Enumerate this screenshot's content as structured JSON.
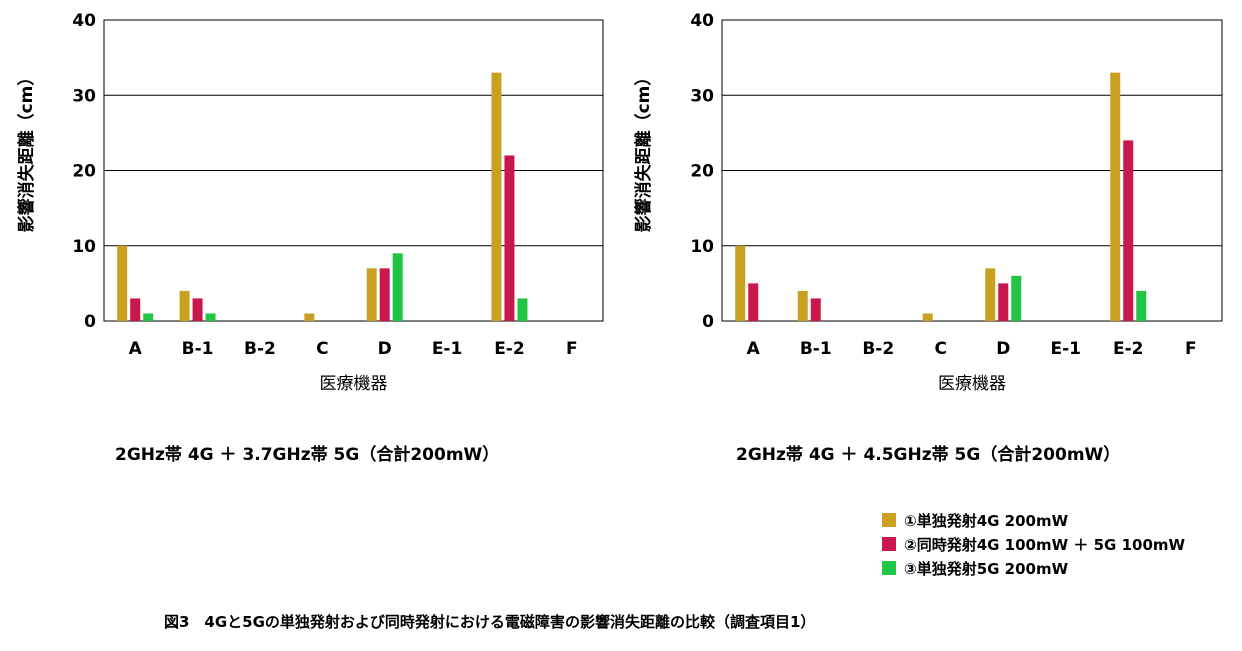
{
  "chart_data": [
    {
      "type": "bar",
      "title": "2GHz帯 4G ＋ 3.7GHz帯 5G（合計200mW）",
      "xlabel": "医療機器",
      "ylabel": "影響消失距離（cm）",
      "ylim": [
        0,
        40
      ],
      "yticks": [
        "0",
        "10",
        "20",
        "30",
        "40"
      ],
      "grid": true,
      "categories": [
        "A",
        "B-1",
        "B-2",
        "C",
        "D",
        "E-1",
        "E-2",
        "F"
      ],
      "series": [
        {
          "name": "①単独発射4G 200mW",
          "color": "#C9A020",
          "values": [
            10,
            4,
            0,
            1,
            7,
            0,
            33,
            0
          ]
        },
        {
          "name": "②同時発射4G 100mW ＋ 5G 100mW",
          "color": "#C8174A",
          "values": [
            3,
            3,
            0,
            0,
            7,
            0,
            22,
            0
          ]
        },
        {
          "name": "③単独発射5G 200mW",
          "color": "#22C443",
          "values": [
            1,
            1,
            0,
            0,
            9,
            0,
            3,
            0
          ]
        }
      ]
    },
    {
      "type": "bar",
      "title": "2GHz帯 4G ＋ 4.5GHz帯 5G（合計200mW）",
      "xlabel": "医療機器",
      "ylabel": "影響消失距離（cm）",
      "ylim": [
        0,
        40
      ],
      "yticks": [
        "0",
        "10",
        "20",
        "30",
        "40"
      ],
      "grid": true,
      "categories": [
        "A",
        "B-1",
        "B-2",
        "C",
        "D",
        "E-1",
        "E-2",
        "F"
      ],
      "series": [
        {
          "name": "①単独発射4G 200mW",
          "color": "#C9A020",
          "values": [
            10,
            4,
            0,
            1,
            7,
            0,
            33,
            0
          ]
        },
        {
          "name": "②同時発射4G 100mW ＋ 5G 100mW",
          "color": "#C8174A",
          "values": [
            5,
            3,
            0,
            0,
            5,
            0,
            24,
            0
          ]
        },
        {
          "name": "③単独発射5G 200mW",
          "color": "#22C443",
          "values": [
            0,
            0,
            0,
            0,
            6,
            0,
            4,
            0
          ]
        }
      ]
    }
  ],
  "legend": [
    {
      "label": "①単独発射4G 200mW",
      "color": "#C9A020"
    },
    {
      "label": "②同時発射4G 100mW ＋ 5G 100mW",
      "color": "#C8174A"
    },
    {
      "label": "③単独発射5G 200mW",
      "color": "#22C443"
    }
  ],
  "caption": "図3　4Gと5Gの単独発射および同時発射における電磁障害の影響消失距離の比較（調査項目1）"
}
